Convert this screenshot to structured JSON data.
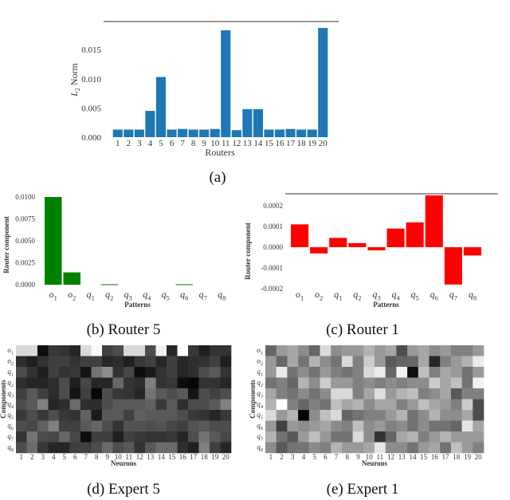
{
  "chart_data": [
    {
      "id": "a",
      "type": "bar",
      "caption": "(a)",
      "xlabel": "Routers",
      "ylabel": "L2 Norm",
      "categories": [
        "1",
        "2",
        "3",
        "4",
        "5",
        "6",
        "7",
        "8",
        "9",
        "10",
        "11",
        "12",
        "13",
        "14",
        "15",
        "16",
        "17",
        "18",
        "19",
        "20"
      ],
      "values": [
        0.0013,
        0.0013,
        0.0013,
        0.0045,
        0.0103,
        0.0013,
        0.0014,
        0.0013,
        0.0013,
        0.0014,
        0.0183,
        0.0012,
        0.0048,
        0.0048,
        0.0013,
        0.0013,
        0.0014,
        0.0013,
        0.0013,
        0.0187
      ],
      "yticks": [
        "0.000",
        "0.005",
        "0.010",
        "0.015"
      ],
      "ylim": [
        0,
        0.0198
      ],
      "color": "#1f77b4"
    },
    {
      "id": "b",
      "type": "bar",
      "caption": "(b) Router 5",
      "xlabel": "Patterns",
      "ylabel": "Router component",
      "categories": [
        "o1",
        "o2",
        "q1",
        "q2",
        "q3",
        "q4",
        "q5",
        "q6",
        "q7",
        "q8"
      ],
      "values": [
        0.01,
        0.0014,
        0,
        5e-05,
        0,
        0,
        0,
        5e-05,
        0,
        0
      ],
      "yticks": [
        "0.0000",
        "0.0025",
        "0.0050",
        "0.0075",
        "0.0100"
      ],
      "ylim": [
        0,
        0.01
      ],
      "color": "#008000"
    },
    {
      "id": "c",
      "type": "bar",
      "caption": "(c) Router 1",
      "xlabel": "Patterns",
      "ylabel": "Router component",
      "categories": [
        "o1",
        "o2",
        "q1",
        "q2",
        "q3",
        "q4",
        "q5",
        "q6",
        "q7",
        "q8"
      ],
      "values": [
        0.00011,
        -3e-05,
        4.5e-05,
        2e-05,
        -1.5e-05,
        9e-05,
        0.00012,
        0.00025,
        -0.00018,
        -4e-05
      ],
      "yticks": [
        "-0.0002",
        "-0.0001",
        "0.0000",
        "0.0001",
        "0.0002"
      ],
      "ylim": [
        -0.0002,
        0.000258
      ],
      "color": "#ff0000"
    },
    {
      "id": "d",
      "type": "heatmap",
      "caption": "(d) Expert 5",
      "xlabel": "Neurons",
      "ylabel": "Components",
      "rows": [
        "o1",
        "o2",
        "q1",
        "q2",
        "q3",
        "q4",
        "q5",
        "q6",
        "q7",
        "q8"
      ],
      "cols": [
        "1",
        "2",
        "3",
        "4",
        "5",
        "6",
        "7",
        "8",
        "9",
        "10",
        "11",
        "12",
        "13",
        "14",
        "15",
        "16",
        "17",
        "18",
        "19",
        "20"
      ],
      "brightness": [
        [
          0.85,
          0.85,
          0.05,
          0.22,
          0.2,
          0.15,
          0.85,
          0.98,
          0.25,
          0.3,
          0.85,
          0.85,
          0.3,
          0.95,
          0.15,
          1,
          0.22,
          0.12,
          0.2,
          0.2
        ],
        [
          0.18,
          0.12,
          0.2,
          0.25,
          0.25,
          0.2,
          0.25,
          0.25,
          0.15,
          0.18,
          0.12,
          0.22,
          0.25,
          0.15,
          0.25,
          0.15,
          0.18,
          0.2,
          0.25,
          0.12
        ],
        [
          0.3,
          0.2,
          0.12,
          0.25,
          0.2,
          0.22,
          0.08,
          0.45,
          0.55,
          0.2,
          0.28,
          0.05,
          0.1,
          0.2,
          0.25,
          0.15,
          0.18,
          0.3,
          0.35,
          0.2
        ],
        [
          0.18,
          0.15,
          0.15,
          0.18,
          0.3,
          0.12,
          0.28,
          0.15,
          0.15,
          0.4,
          0.2,
          0.18,
          0.5,
          0.2,
          0.22,
          0.05,
          0.02,
          0.2,
          0.2,
          0.15
        ],
        [
          0.25,
          0.35,
          0.25,
          0.18,
          0.3,
          0.08,
          0.25,
          0.02,
          0.3,
          0.22,
          0.2,
          0.15,
          0.45,
          0.35,
          0.3,
          0.35,
          0.08,
          0.3,
          0.25,
          0.3
        ],
        [
          0.3,
          0.35,
          0.5,
          0.15,
          0.18,
          0.42,
          0.18,
          0.18,
          0.3,
          0.35,
          0.35,
          0.35,
          0.38,
          0.22,
          0.35,
          0.18,
          0.3,
          0.3,
          0.35,
          0.5
        ],
        [
          0.22,
          0.3,
          0.22,
          0.3,
          0.22,
          0.2,
          0.38,
          0.1,
          0.35,
          0.35,
          0.25,
          0.38,
          0.35,
          0.35,
          0.35,
          0.3,
          0.22,
          0.2,
          0.15,
          0.22
        ],
        [
          0.3,
          0.28,
          0.38,
          0.5,
          0.25,
          0.25,
          0.35,
          0.4,
          0.3,
          0.2,
          0.32,
          0.32,
          0.3,
          0.32,
          0.28,
          0.25,
          0.32,
          0.35,
          0.3,
          0.3
        ],
        [
          0.2,
          0.45,
          0.3,
          0.28,
          0.4,
          0.28,
          0.05,
          0.25,
          0.25,
          0.12,
          0.25,
          0.22,
          0.2,
          0.2,
          0.22,
          0.15,
          0.3,
          0.45,
          0.35,
          0.28
        ],
        [
          0.3,
          0.42,
          0.22,
          0.15,
          0.15,
          0.25,
          0.25,
          0.3,
          0.42,
          0.3,
          0.35,
          0.2,
          0.35,
          0.42,
          0.42,
          0.18,
          0.12,
          0.5,
          0.25,
          0.15
        ]
      ]
    },
    {
      "id": "e",
      "type": "heatmap",
      "caption": "(e) Expert 1",
      "xlabel": "Neurons",
      "ylabel": "Components",
      "rows": [
        "o1",
        "o2",
        "q1",
        "q2",
        "q3",
        "q4",
        "q5",
        "q6",
        "q7",
        "q8"
      ],
      "cols": [
        "1",
        "2",
        "3",
        "4",
        "5",
        "6",
        "7",
        "8",
        "9",
        "10",
        "11",
        "12",
        "13",
        "14",
        "15",
        "16",
        "17",
        "18",
        "19",
        "20"
      ],
      "brightness": [
        [
          0.4,
          0.6,
          0.65,
          0.55,
          0.4,
          0.85,
          0.55,
          0.6,
          0.6,
          0.7,
          0.6,
          0.65,
          0.3,
          0.6,
          0.65,
          0.55,
          0.6,
          0.5,
          0.5,
          0.6
        ],
        [
          0.6,
          0.4,
          0.65,
          0.45,
          0.7,
          0.55,
          0.45,
          0.85,
          0.5,
          0.8,
          0.6,
          0.35,
          0.4,
          0.4,
          0.65,
          0.15,
          0.5,
          0.6,
          0.7,
          0.92
        ],
        [
          0.6,
          0.92,
          0.45,
          0.55,
          0.45,
          0.6,
          0.5,
          0.45,
          0.5,
          0.85,
          0.92,
          0.4,
          0.95,
          0.05,
          0.75,
          0.5,
          0.65,
          0.6,
          0.45,
          0.6
        ],
        [
          0.45,
          0.5,
          0.4,
          0.7,
          0.55,
          0.8,
          0.6,
          0.6,
          0.5,
          0.55,
          0.5,
          0.55,
          0.5,
          0.55,
          0.55,
          0.8,
          0.65,
          0.75,
          0.45,
          0.95
        ],
        [
          0.65,
          0.5,
          0.45,
          0.55,
          0.45,
          0.55,
          0.85,
          0.85,
          0.5,
          0.65,
          0.88,
          0.6,
          0.7,
          0.75,
          0.5,
          0.55,
          0.65,
          0.35,
          0.5,
          0.5
        ],
        [
          0.7,
          1,
          0.5,
          0.4,
          0.5,
          0.45,
          0.75,
          0.65,
          0.7,
          0.55,
          0.65,
          0.65,
          0.5,
          0.6,
          0.75,
          0.65,
          0.6,
          0.5,
          0.8,
          0.3
        ],
        [
          0.85,
          0.6,
          0.7,
          0.02,
          0.55,
          0.75,
          0.85,
          0.4,
          0.45,
          0.5,
          0.5,
          0.6,
          0.7,
          0.45,
          0.55,
          0.7,
          0.55,
          0.55,
          0.65,
          0.3
        ],
        [
          0.6,
          0.25,
          0.6,
          0.55,
          0.6,
          0.65,
          0.55,
          0.5,
          0.75,
          0.55,
          0.6,
          0.5,
          0.55,
          0.45,
          0.55,
          0.45,
          0.45,
          0.4,
          0.9,
          0.65
        ],
        [
          0.7,
          0.45,
          0.35,
          0.6,
          0.75,
          0.6,
          0.45,
          0.45,
          0.85,
          0.55,
          0.2,
          0.4,
          0.65,
          0.7,
          0.5,
          0.6,
          0.7,
          0.6,
          0.6,
          0.6
        ],
        [
          0.55,
          0.35,
          0.45,
          0.45,
          0.55,
          0.5,
          0.7,
          0.6,
          0.6,
          0.65,
          0.9,
          0.55,
          0.55,
          0.45,
          0.6,
          0.65,
          0.45,
          0.75,
          0.6,
          0.5
        ]
      ]
    }
  ]
}
